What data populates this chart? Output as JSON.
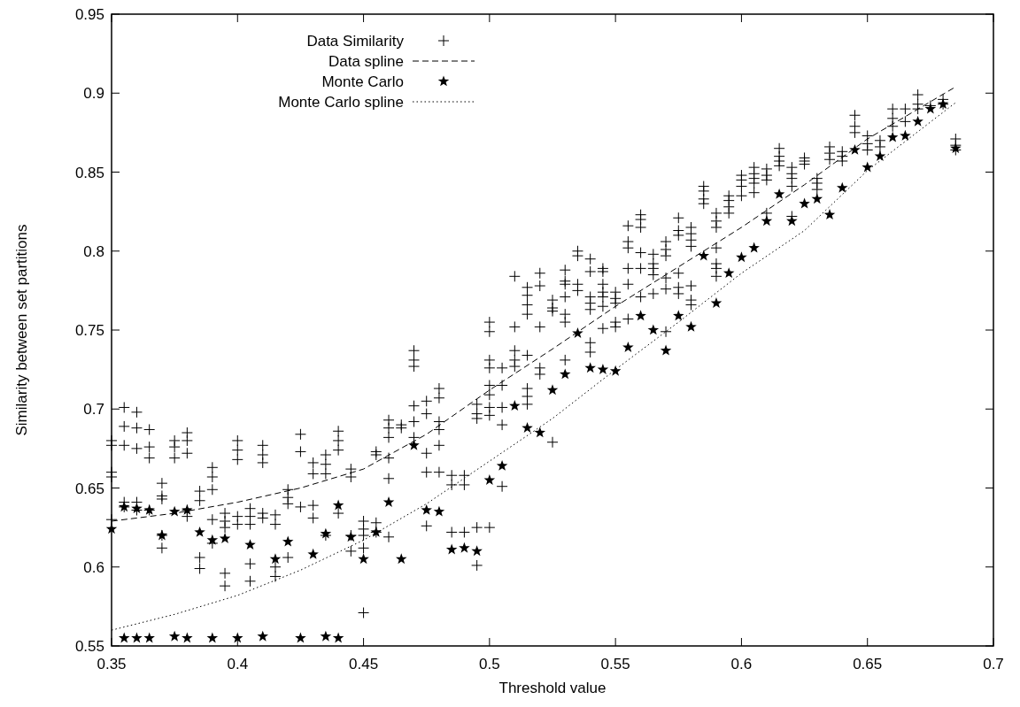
{
  "chart_data": {
    "type": "scatter",
    "xlabel": "Threshold value",
    "ylabel": "Similarity between set partitions",
    "xlim": [
      0.35,
      0.7
    ],
    "ylim": [
      0.55,
      0.95
    ],
    "xticks": [
      0.35,
      0.4,
      0.45,
      0.5,
      0.55,
      0.6,
      0.65,
      0.7
    ],
    "yticks": [
      0.55,
      0.6,
      0.65,
      0.7,
      0.75,
      0.8,
      0.85,
      0.9,
      0.95
    ],
    "legend": "top left",
    "series": [
      {
        "name": "Data Similarity",
        "marker": "cross",
        "color": "#000000",
        "x": [
          0.35,
          0.35,
          0.35,
          0.35,
          0.35,
          0.355,
          0.355,
          0.355,
          0.355,
          0.355,
          0.36,
          0.36,
          0.36,
          0.36,
          0.36,
          0.365,
          0.365,
          0.365,
          0.365,
          0.37,
          0.37,
          0.37,
          0.37,
          0.37,
          0.375,
          0.375,
          0.375,
          0.38,
          0.38,
          0.38,
          0.38,
          0.38,
          0.385,
          0.385,
          0.385,
          0.385,
          0.39,
          0.39,
          0.39,
          0.39,
          0.39,
          0.395,
          0.395,
          0.395,
          0.395,
          0.395,
          0.4,
          0.4,
          0.4,
          0.4,
          0.4,
          0.405,
          0.405,
          0.405,
          0.405,
          0.405,
          0.41,
          0.41,
          0.41,
          0.41,
          0.41,
          0.415,
          0.415,
          0.415,
          0.415,
          0.42,
          0.42,
          0.42,
          0.42,
          0.425,
          0.425,
          0.425,
          0.43,
          0.43,
          0.43,
          0.43,
          0.435,
          0.435,
          0.435,
          0.435,
          0.44,
          0.44,
          0.44,
          0.44,
          0.445,
          0.445,
          0.445,
          0.445,
          0.45,
          0.45,
          0.45,
          0.45,
          0.45,
          0.455,
          0.455,
          0.455,
          0.455,
          0.46,
          0.46,
          0.46,
          0.46,
          0.46,
          0.46,
          0.465,
          0.465,
          0.47,
          0.47,
          0.47,
          0.47,
          0.47,
          0.47,
          0.475,
          0.475,
          0.475,
          0.475,
          0.475,
          0.48,
          0.48,
          0.48,
          0.48,
          0.48,
          0.48,
          0.485,
          0.485,
          0.485,
          0.49,
          0.49,
          0.49,
          0.495,
          0.495,
          0.495,
          0.495,
          0.495,
          0.5,
          0.5,
          0.5,
          0.5,
          0.5,
          0.5,
          0.5,
          0.5,
          0.5,
          0.505,
          0.505,
          0.505,
          0.505,
          0.505,
          0.51,
          0.51,
          0.51,
          0.51,
          0.51,
          0.515,
          0.515,
          0.515,
          0.515,
          0.515,
          0.515,
          0.515,
          0.515,
          0.52,
          0.52,
          0.52,
          0.52,
          0.52,
          0.525,
          0.525,
          0.525,
          0.525,
          0.53,
          0.53,
          0.53,
          0.53,
          0.53,
          0.53,
          0.53,
          0.535,
          0.535,
          0.535,
          0.535,
          0.54,
          0.54,
          0.54,
          0.54,
          0.54,
          0.54,
          0.54,
          0.545,
          0.545,
          0.545,
          0.545,
          0.545,
          0.545,
          0.545,
          0.55,
          0.55,
          0.55,
          0.55,
          0.55,
          0.555,
          0.555,
          0.555,
          0.555,
          0.555,
          0.555,
          0.56,
          0.56,
          0.56,
          0.56,
          0.56,
          0.56,
          0.565,
          0.565,
          0.565,
          0.565,
          0.565,
          0.57,
          0.57,
          0.57,
          0.57,
          0.57,
          0.57,
          0.575,
          0.575,
          0.575,
          0.575,
          0.575,
          0.575,
          0.58,
          0.58,
          0.58,
          0.58,
          0.58,
          0.58,
          0.58,
          0.585,
          0.585,
          0.585,
          0.585,
          0.59,
          0.59,
          0.59,
          0.59,
          0.59,
          0.59,
          0.59,
          0.595,
          0.595,
          0.595,
          0.595,
          0.6,
          0.6,
          0.6,
          0.6,
          0.605,
          0.605,
          0.605,
          0.605,
          0.605,
          0.61,
          0.61,
          0.61,
          0.61,
          0.615,
          0.615,
          0.615,
          0.615,
          0.62,
          0.62,
          0.62,
          0.62,
          0.62,
          0.625,
          0.625,
          0.625,
          0.63,
          0.63,
          0.63,
          0.635,
          0.635,
          0.635,
          0.64,
          0.64,
          0.64,
          0.645,
          0.645,
          0.645,
          0.65,
          0.65,
          0.65,
          0.655,
          0.655,
          0.66,
          0.66,
          0.66,
          0.665,
          0.665,
          0.67,
          0.67,
          0.67,
          0.675,
          0.68,
          0.68,
          0.685,
          0.685,
          0.685
        ],
        "values": [
          0.68,
          0.677,
          0.66,
          0.657,
          0.63,
          0.701,
          0.689,
          0.677,
          0.641,
          0.638,
          0.698,
          0.688,
          0.675,
          0.641,
          0.636,
          0.687,
          0.676,
          0.669,
          0.636,
          0.653,
          0.645,
          0.643,
          0.62,
          0.612,
          0.68,
          0.676,
          0.669,
          0.685,
          0.68,
          0.672,
          0.636,
          0.632,
          0.648,
          0.642,
          0.606,
          0.599,
          0.663,
          0.657,
          0.649,
          0.63,
          0.615,
          0.634,
          0.629,
          0.625,
          0.596,
          0.588,
          0.68,
          0.674,
          0.668,
          0.632,
          0.627,
          0.637,
          0.632,
          0.627,
          0.602,
          0.591,
          0.677,
          0.671,
          0.666,
          0.634,
          0.631,
          0.633,
          0.627,
          0.6,
          0.594,
          0.649,
          0.644,
          0.64,
          0.606,
          0.684,
          0.673,
          0.638,
          0.666,
          0.659,
          0.639,
          0.631,
          0.671,
          0.665,
          0.659,
          0.62,
          0.686,
          0.68,
          0.674,
          0.634,
          0.662,
          0.657,
          0.62,
          0.61,
          0.629,
          0.624,
          0.62,
          0.612,
          0.571,
          0.673,
          0.671,
          0.628,
          0.622,
          0.693,
          0.688,
          0.682,
          0.669,
          0.656,
          0.619,
          0.69,
          0.688,
          0.737,
          0.731,
          0.727,
          0.702,
          0.692,
          0.682,
          0.705,
          0.697,
          0.672,
          0.66,
          0.626,
          0.713,
          0.707,
          0.692,
          0.687,
          0.677,
          0.66,
          0.658,
          0.652,
          0.622,
          0.658,
          0.652,
          0.622,
          0.703,
          0.697,
          0.694,
          0.625,
          0.601,
          0.755,
          0.749,
          0.731,
          0.726,
          0.715,
          0.709,
          0.701,
          0.696,
          0.625,
          0.726,
          0.715,
          0.701,
          0.69,
          0.651,
          0.784,
          0.752,
          0.737,
          0.731,
          0.727,
          0.777,
          0.772,
          0.766,
          0.76,
          0.734,
          0.713,
          0.708,
          0.703,
          0.786,
          0.778,
          0.752,
          0.726,
          0.722,
          0.769,
          0.764,
          0.762,
          0.679,
          0.788,
          0.781,
          0.779,
          0.771,
          0.76,
          0.755,
          0.731,
          0.8,
          0.797,
          0.779,
          0.775,
          0.795,
          0.787,
          0.771,
          0.767,
          0.763,
          0.742,
          0.736,
          0.789,
          0.787,
          0.779,
          0.774,
          0.771,
          0.765,
          0.751,
          0.774,
          0.77,
          0.767,
          0.755,
          0.752,
          0.816,
          0.806,
          0.802,
          0.789,
          0.779,
          0.757,
          0.823,
          0.82,
          0.815,
          0.799,
          0.789,
          0.771,
          0.798,
          0.792,
          0.789,
          0.785,
          0.773,
          0.806,
          0.801,
          0.797,
          0.783,
          0.776,
          0.749,
          0.821,
          0.813,
          0.81,
          0.786,
          0.777,
          0.773,
          0.815,
          0.811,
          0.807,
          0.803,
          0.778,
          0.769,
          0.766,
          0.841,
          0.838,
          0.833,
          0.83,
          0.824,
          0.819,
          0.815,
          0.802,
          0.792,
          0.789,
          0.784,
          0.835,
          0.832,
          0.828,
          0.824,
          0.848,
          0.845,
          0.841,
          0.835,
          0.853,
          0.849,
          0.846,
          0.843,
          0.837,
          0.852,
          0.848,
          0.845,
          0.824,
          0.865,
          0.86,
          0.857,
          0.854,
          0.853,
          0.849,
          0.846,
          0.841,
          0.822,
          0.859,
          0.857,
          0.855,
          0.846,
          0.843,
          0.839,
          0.866,
          0.862,
          0.858,
          0.863,
          0.86,
          0.857,
          0.886,
          0.879,
          0.875,
          0.873,
          0.868,
          0.864,
          0.87,
          0.866,
          0.89,
          0.884,
          0.879,
          0.89,
          0.882,
          0.899,
          0.893,
          0.89,
          0.892,
          0.896,
          0.893,
          0.871,
          0.867,
          0.864
        ]
      },
      {
        "name": "Data spline",
        "type": "line",
        "marker": "none",
        "line_style": "dashed",
        "color": "#000000",
        "x": [
          0.35,
          0.375,
          0.4,
          0.425,
          0.45,
          0.475,
          0.5,
          0.525,
          0.55,
          0.575,
          0.6,
          0.625,
          0.65,
          0.685
        ],
        "values": [
          0.629,
          0.634,
          0.641,
          0.65,
          0.662,
          0.684,
          0.712,
          0.738,
          0.765,
          0.79,
          0.815,
          0.842,
          0.871,
          0.904
        ]
      },
      {
        "name": "Monte Carlo",
        "marker": "star",
        "color": "#000000",
        "x": [
          0.355,
          0.36,
          0.365,
          0.375,
          0.38,
          0.39,
          0.4,
          0.41,
          0.425,
          0.435,
          0.44,
          0.35,
          0.355,
          0.36,
          0.365,
          0.37,
          0.375,
          0.38,
          0.385,
          0.39,
          0.395,
          0.405,
          0.415,
          0.42,
          0.43,
          0.435,
          0.44,
          0.445,
          0.45,
          0.455,
          0.46,
          0.465,
          0.47,
          0.475,
          0.48,
          0.485,
          0.49,
          0.495,
          0.5,
          0.505,
          0.51,
          0.515,
          0.52,
          0.525,
          0.53,
          0.535,
          0.54,
          0.545,
          0.55,
          0.555,
          0.56,
          0.565,
          0.57,
          0.575,
          0.58,
          0.585,
          0.59,
          0.595,
          0.6,
          0.605,
          0.61,
          0.615,
          0.62,
          0.625,
          0.63,
          0.635,
          0.64,
          0.645,
          0.65,
          0.655,
          0.66,
          0.665,
          0.67,
          0.675,
          0.68,
          0.685
        ],
        "values": [
          0.555,
          0.555,
          0.555,
          0.556,
          0.555,
          0.555,
          0.555,
          0.556,
          0.555,
          0.556,
          0.555,
          0.624,
          0.638,
          0.637,
          0.636,
          0.62,
          0.635,
          0.636,
          0.622,
          0.617,
          0.618,
          0.614,
          0.605,
          0.616,
          0.608,
          0.621,
          0.639,
          0.619,
          0.605,
          0.622,
          0.641,
          0.605,
          0.677,
          0.636,
          0.635,
          0.611,
          0.612,
          0.61,
          0.655,
          0.664,
          0.702,
          0.688,
          0.685,
          0.712,
          0.722,
          0.748,
          0.726,
          0.725,
          0.724,
          0.739,
          0.759,
          0.75,
          0.737,
          0.759,
          0.752,
          0.797,
          0.767,
          0.786,
          0.796,
          0.802,
          0.819,
          0.836,
          0.819,
          0.83,
          0.833,
          0.823,
          0.84,
          0.864,
          0.853,
          0.86,
          0.872,
          0.873,
          0.882,
          0.89,
          0.893,
          0.865
        ]
      },
      {
        "name": "Monte Carlo spline",
        "type": "line",
        "marker": "none",
        "line_style": "dotted",
        "color": "#000000",
        "x": [
          0.35,
          0.375,
          0.4,
          0.425,
          0.45,
          0.475,
          0.5,
          0.525,
          0.55,
          0.575,
          0.6,
          0.625,
          0.65,
          0.685
        ],
        "values": [
          0.56,
          0.57,
          0.582,
          0.598,
          0.617,
          0.64,
          0.667,
          0.694,
          0.725,
          0.755,
          0.786,
          0.813,
          0.851,
          0.894
        ]
      }
    ]
  }
}
